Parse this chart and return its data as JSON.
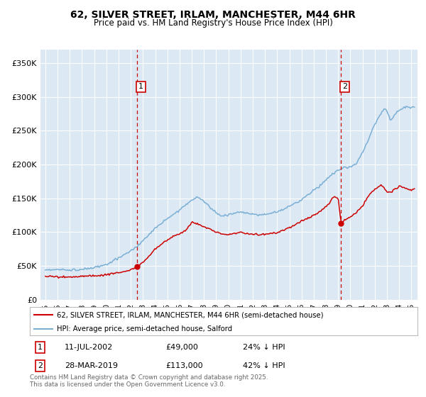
{
  "title": "62, SILVER STREET, IRLAM, MANCHESTER, M44 6HR",
  "subtitle": "Price paid vs. HM Land Registry's House Price Index (HPI)",
  "bg_color": "#dce9f5",
  "red_color": "#cc0000",
  "blue_color": "#7aafd4",
  "dashed_color": "#cc0000",
  "ylim": [
    0,
    370000
  ],
  "yticks": [
    0,
    50000,
    100000,
    150000,
    200000,
    250000,
    300000,
    350000
  ],
  "ytick_labels": [
    "£0",
    "£50K",
    "£100K",
    "£150K",
    "£200K",
    "£250K",
    "£300K",
    "£350K"
  ],
  "xmin": 1994.6,
  "xmax": 2025.5,
  "sale1_x": 2002.53,
  "sale1_y": 49000,
  "sale1_label": "1",
  "sale1_date": "11-JUL-2002",
  "sale1_price": "£49,000",
  "sale1_note": "24% ↓ HPI",
  "sale2_x": 2019.24,
  "sale2_y": 113000,
  "sale2_label": "2",
  "sale2_date": "28-MAR-2019",
  "sale2_price": "£113,000",
  "sale2_note": "42% ↓ HPI",
  "legend_line1": "62, SILVER STREET, IRLAM, MANCHESTER, M44 6HR (semi-detached house)",
  "legend_line2": "HPI: Average price, semi-detached house, Salford",
  "footer": "Contains HM Land Registry data © Crown copyright and database right 2025.\nThis data is licensed under the Open Government Licence v3.0."
}
